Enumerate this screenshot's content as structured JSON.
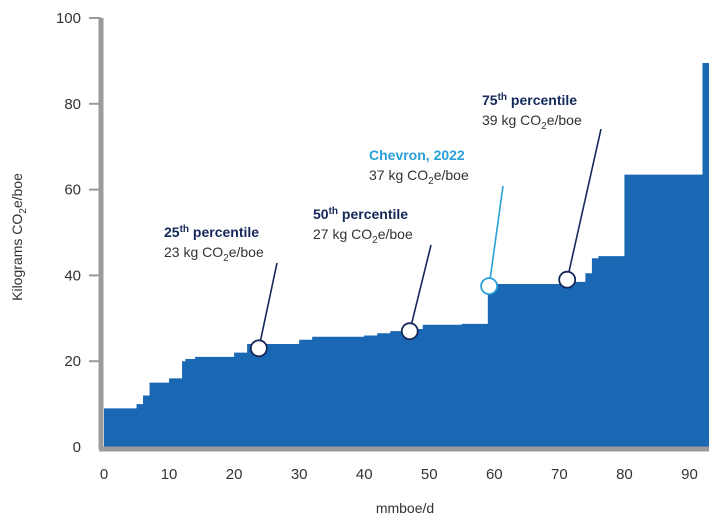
{
  "colors": {
    "area": "#1a68b4",
    "axis": "#9b9b9b",
    "navy": "#14285a",
    "chevron": "#2a9fd8"
  },
  "chart_data": {
    "type": "area",
    "title": "",
    "xlabel": "mmboe/d",
    "ylabel": {
      "pre": "Kilograms CO",
      "sub": "2",
      "post": "e/boe"
    },
    "xlim": [
      0,
      93
    ],
    "ylim": [
      0,
      100
    ],
    "xticks": [
      0,
      10,
      20,
      30,
      40,
      50,
      60,
      70,
      80,
      90
    ],
    "yticks": [
      0,
      20,
      40,
      60,
      80,
      100
    ],
    "series": [
      {
        "x": [
          0,
          5,
          5,
          6,
          6,
          7,
          7,
          8,
          8,
          10,
          10,
          12,
          12,
          12.5,
          12.5,
          14,
          14,
          20,
          20,
          22,
          22,
          30,
          30,
          32,
          32,
          40,
          40,
          42,
          42,
          44,
          44,
          46,
          46,
          49,
          49,
          55,
          55,
          59,
          59,
          70,
          70,
          74,
          74,
          75,
          75,
          76,
          76,
          80,
          80,
          92,
          92,
          93
        ],
        "y": [
          9,
          9,
          10,
          10,
          12,
          12,
          15,
          15,
          15,
          15,
          16,
          16,
          20,
          20,
          20.5,
          20.5,
          21,
          21,
          22,
          22,
          24,
          24,
          25,
          25,
          25.7,
          25.7,
          26,
          26,
          26.5,
          26.5,
          27,
          27,
          27.5,
          27.5,
          28.5,
          28.5,
          28.7,
          28.7,
          38,
          38,
          38.5,
          38.5,
          40.5,
          40.5,
          44,
          44,
          44.5,
          44.5,
          63.5,
          63.5,
          89.5,
          89.5
        ]
      }
    ],
    "annotations": [
      {
        "key": "p25",
        "title_num": "25",
        "title_sup": "th",
        "title_text": " percentile",
        "value_pre": "23 kg CO",
        "value_sub": "2",
        "value_post": "e/boe",
        "point": [
          23.8,
          23
        ],
        "style": "navy"
      },
      {
        "key": "p50",
        "title_num": "50",
        "title_sup": "th",
        "title_text": " percentile",
        "value_pre": "27 kg CO",
        "value_sub": "2",
        "value_post": "e/boe",
        "point": [
          47,
          27
        ],
        "style": "navy"
      },
      {
        "key": "chevron",
        "title_num": "Chevron, 2022",
        "title_sup": "",
        "title_text": "",
        "value_pre": "37 kg CO",
        "value_sub": "2",
        "value_post": "e/boe",
        "point": [
          59.2,
          37.5
        ],
        "style": "chevron"
      },
      {
        "key": "p75",
        "title_num": "75",
        "title_sup": "th",
        "title_text": " percentile",
        "value_pre": "39 kg CO",
        "value_sub": "2",
        "value_post": "e/boe",
        "point": [
          71.2,
          39
        ],
        "style": "navy"
      }
    ]
  }
}
